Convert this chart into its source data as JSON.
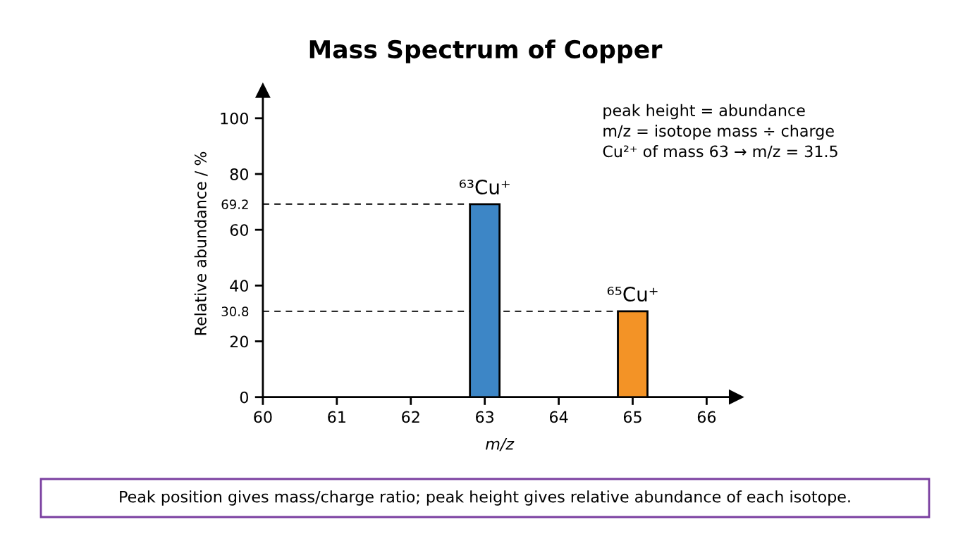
{
  "chart_data": {
    "type": "bar",
    "title": "Mass Spectrum of Copper",
    "xlabel": "m/z",
    "ylabel": "Relative abundance / %",
    "x": [
      63,
      65
    ],
    "values": [
      69.2,
      30.8
    ],
    "colors": [
      "#3d86c6",
      "#f39326"
    ],
    "xlim": [
      60,
      66.4
    ],
    "xticks": [
      60,
      61,
      62,
      63,
      64,
      65,
      66
    ],
    "ylim": [
      0,
      110
    ],
    "yticks": [
      0,
      20,
      30.8,
      40,
      60,
      69.2,
      80,
      100
    ],
    "ref_lines": [
      {
        "axis": "y",
        "value": 69.2,
        "color": "#000000",
        "line_style": "dashed"
      },
      {
        "axis": "y",
        "value": 30.8,
        "color": "#000000",
        "line_style": "dashed"
      }
    ],
    "annotations": [
      "peak height = abundance\nm/z = isotope mass ÷ charge\nCu²⁺ of mass 63 → m/z = 31.5",
      "Peak position gives mass/charge ratio; peak height gives relative abundance of each isotope.",
      {
        "text": "⁶³Cu⁺",
        "x": 63,
        "y": 69.2
      },
      {
        "text": "⁶⁵Cu⁺",
        "x": 65,
        "y": 30.8
      }
    ]
  }
}
